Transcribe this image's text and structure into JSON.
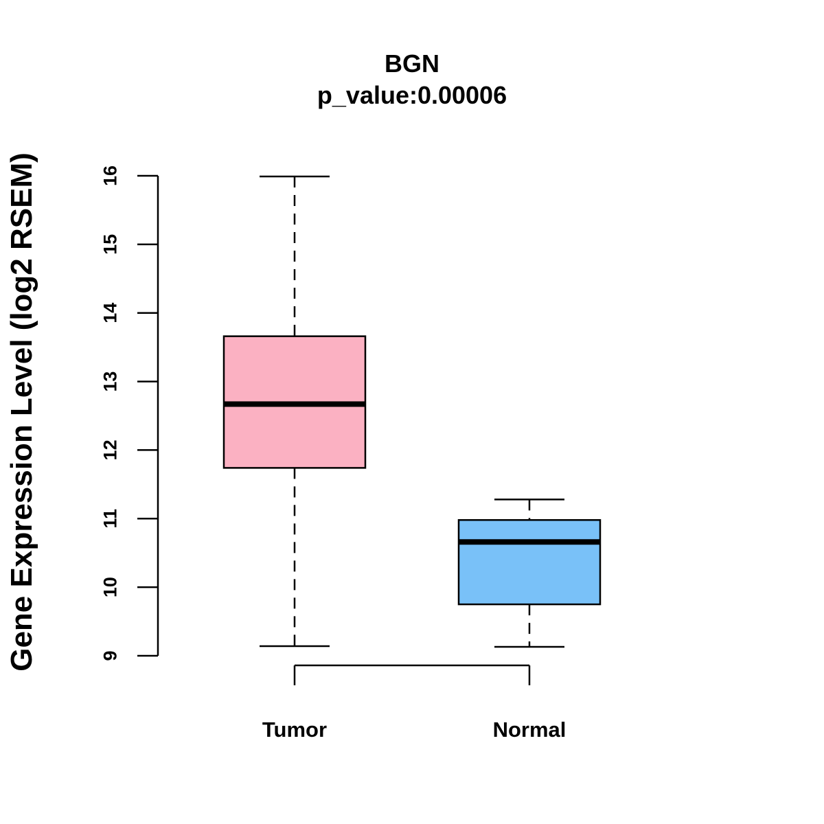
{
  "chart_data": {
    "type": "boxplot",
    "title": "BGN",
    "subtitle": "p_value:0.00006",
    "xlabel": "",
    "ylabel": "Gene Expression Level (log2 RSEM)",
    "ylim": [
      9,
      16
    ],
    "yticks": [
      9,
      10,
      11,
      12,
      13,
      14,
      15,
      16
    ],
    "ytick_labels": [
      "9",
      "10",
      "11",
      "12",
      "13",
      "14",
      "15",
      "16"
    ],
    "grid": false,
    "comparison_bracket": true,
    "categories": [
      "Tumor",
      "Normal"
    ],
    "boxes": [
      {
        "name": "Tumor",
        "whisker_low": 9.14,
        "q1": 11.74,
        "median": 12.67,
        "q3": 13.66,
        "whisker_high": 15.99,
        "fill": "#FBB1C2"
      },
      {
        "name": "Normal",
        "whisker_low": 9.13,
        "q1": 9.75,
        "median": 10.66,
        "q3": 10.98,
        "whisker_high": 11.28,
        "fill": "#79C1F8"
      }
    ]
  }
}
